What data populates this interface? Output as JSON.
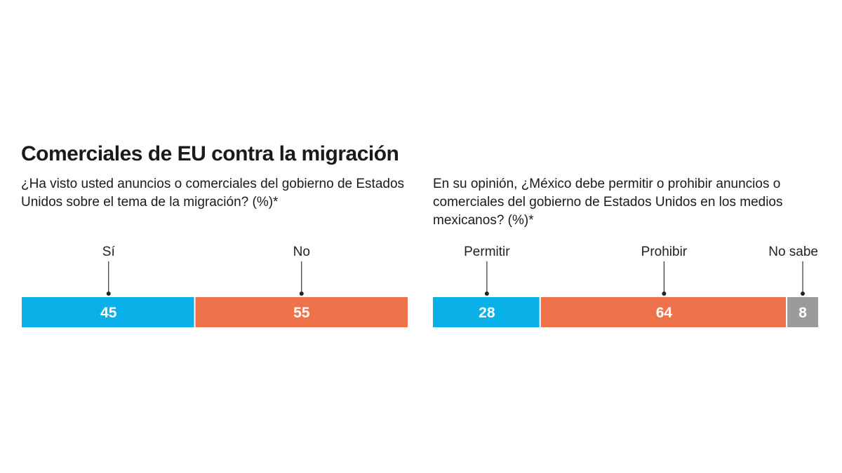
{
  "title": "Comerciales de EU contra la migración",
  "charts": [
    {
      "question": "¿Ha visto usted anuncios o comerciales del gobierno de Estados Unidos sobre el tema de la migración? (%)*"
    },
    {
      "question": "En su opinión, ¿México debe permitir o prohibir anuncios o comerciales del gobierno de Estados Unidos en los medios mexicanos? (%)*"
    }
  ],
  "chart_data": [
    {
      "type": "bar",
      "stacked": true,
      "orientation": "horizontal",
      "unit": "%",
      "categories": [
        "Sí",
        "No"
      ],
      "values": [
        45,
        55
      ],
      "colors": [
        "#0ab0e8",
        "#f0724a"
      ],
      "xlim": [
        0,
        100
      ]
    },
    {
      "type": "bar",
      "stacked": true,
      "orientation": "horizontal",
      "unit": "%",
      "categories": [
        "Permitir",
        "Prohibir",
        "No sabe"
      ],
      "values": [
        28,
        64,
        8
      ],
      "colors": [
        "#0ab0e8",
        "#f0724a",
        "#9b9b9b"
      ],
      "xlim": [
        0,
        100
      ]
    }
  ]
}
